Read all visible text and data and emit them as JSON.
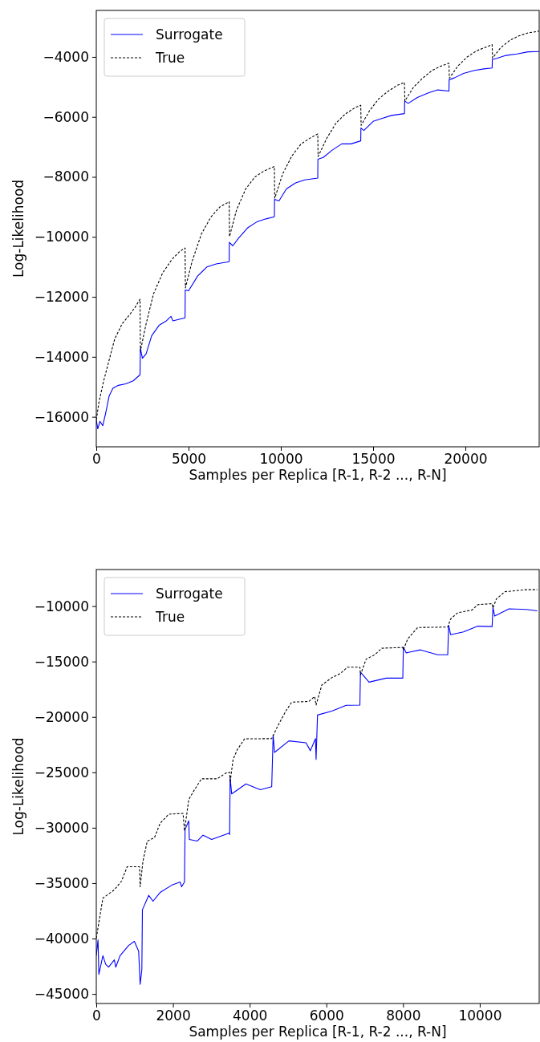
{
  "chart_data": [
    {
      "type": "line",
      "xlabel": "Samples per Replica [R-1, R-2 ..., R-N]",
      "ylabel": "Log-Likelihood",
      "xlim": [
        0,
        24000
      ],
      "ylim": [
        -17000,
        -2450
      ],
      "xticks": [
        0,
        5000,
        10000,
        15000,
        20000
      ],
      "yticks": [
        {
          "value": -16000,
          "label": "−16000"
        },
        {
          "value": -14000,
          "label": "−14000"
        },
        {
          "value": -12000,
          "label": "−12000"
        },
        {
          "value": -10000,
          "label": "−10000"
        },
        {
          "value": -8000,
          "label": "−8000"
        },
        {
          "value": -6000,
          "label": "−6000"
        },
        {
          "value": -4000,
          "label": "−4000"
        }
      ],
      "grid": false,
      "legend": "top left",
      "series": [
        {
          "name": "Surrogate",
          "color": "#0000ff",
          "line_style": "solid",
          "x": [
            0,
            80,
            200,
            350,
            500,
            700,
            900,
            1200,
            1600,
            2000,
            2370,
            2390,
            2500,
            2700,
            3000,
            3400,
            3800,
            4050,
            4150,
            4810,
            4820,
            5000,
            5500,
            6000,
            6500,
            7200,
            7210,
            7400,
            7700,
            8200,
            8700,
            9200,
            9650,
            9660,
            9900,
            10300,
            10800,
            11300,
            12000,
            12010,
            12300,
            12800,
            13300,
            13800,
            14330,
            14340,
            14500,
            15000,
            15500,
            16000,
            16700,
            16710,
            16900,
            17400,
            18000,
            18500,
            19110,
            19120,
            19400,
            19900,
            20500,
            21000,
            21450,
            21460,
            21700,
            22200,
            22800,
            23400,
            24000
          ],
          "values": [
            -16100,
            -16400,
            -16150,
            -16300,
            -15900,
            -15300,
            -15050,
            -14950,
            -14900,
            -14800,
            -14600,
            -13720,
            -14050,
            -13900,
            -13300,
            -12950,
            -12800,
            -12650,
            -12800,
            -12700,
            -11770,
            -11800,
            -11300,
            -11000,
            -10900,
            -10830,
            -10180,
            -10300,
            -10050,
            -9700,
            -9500,
            -9400,
            -9330,
            -8750,
            -8800,
            -8400,
            -8200,
            -8100,
            -8040,
            -7410,
            -7350,
            -7100,
            -6900,
            -6900,
            -6800,
            -6370,
            -6450,
            -6150,
            -6050,
            -5950,
            -5890,
            -5470,
            -5550,
            -5350,
            -5200,
            -5100,
            -5140,
            -4760,
            -4700,
            -4550,
            -4450,
            -4400,
            -4370,
            -4090,
            -4050,
            -3950,
            -3900,
            -3830,
            -3820
          ]
        },
        {
          "name": "True",
          "color": "#000000",
          "line_style": "dashed",
          "x": [
            0,
            150,
            400,
            700,
            1000,
            1400,
            1800,
            2100,
            2370,
            2390,
            2700,
            3100,
            3600,
            4100,
            4500,
            4810,
            4830,
            5200,
            5700,
            6200,
            6700,
            7200,
            7220,
            7600,
            8100,
            8600,
            9100,
            9650,
            9670,
            10100,
            10600,
            11100,
            11600,
            12000,
            12020,
            12500,
            13000,
            13500,
            14000,
            14330,
            14350,
            14800,
            15300,
            15800,
            16300,
            16700,
            16720,
            17200,
            17700,
            18200,
            18700,
            19110,
            19130,
            19600,
            20100,
            20600,
            21000,
            21450,
            21470,
            21900,
            22400,
            22900,
            23400,
            24000
          ],
          "values": [
            -16100,
            -15500,
            -14800,
            -14100,
            -13400,
            -12900,
            -12600,
            -12350,
            -12080,
            -13810,
            -12900,
            -11900,
            -11200,
            -10750,
            -10500,
            -10370,
            -11700,
            -10800,
            -9900,
            -9350,
            -9000,
            -8830,
            -9990,
            -9100,
            -8400,
            -8000,
            -7800,
            -7650,
            -8710,
            -7900,
            -7300,
            -6900,
            -6700,
            -6570,
            -7320,
            -6700,
            -6200,
            -5900,
            -5700,
            -5610,
            -6280,
            -5800,
            -5400,
            -5150,
            -4950,
            -4850,
            -5470,
            -5000,
            -4700,
            -4450,
            -4300,
            -4210,
            -4710,
            -4300,
            -4000,
            -3800,
            -3700,
            -3590,
            -4040,
            -3700,
            -3450,
            -3300,
            -3200,
            -3140
          ]
        }
      ]
    },
    {
      "type": "line",
      "xlabel": "Samples per Replica [R-1, R-2 ..., R-N]",
      "ylabel": "Log-Likelihood",
      "xlim": [
        0,
        11550
      ],
      "ylim": [
        -45860,
        -6700
      ],
      "xticks": [
        0,
        2000,
        4000,
        6000,
        8000,
        10000
      ],
      "yticks": [
        {
          "value": -45000,
          "label": "−45000"
        },
        {
          "value": -40000,
          "label": "−40000"
        },
        {
          "value": -35000,
          "label": "−35000"
        },
        {
          "value": -30000,
          "label": "−30000"
        },
        {
          "value": -25000,
          "label": "−25000"
        },
        {
          "value": -20000,
          "label": "−20000"
        },
        {
          "value": -15000,
          "label": "−15000"
        },
        {
          "value": -10000,
          "label": "−10000"
        }
      ],
      "grid": false,
      "legend": "top left",
      "series": [
        {
          "name": "Surrogate",
          "color": "#0000ff",
          "line_style": "solid",
          "x": [
            0,
            45,
            67,
            172,
            246,
            321,
            471,
            508,
            620,
            844,
            993,
            1105,
            1143,
            1188,
            1203,
            1367,
            1479,
            1665,
            1964,
            2188,
            2225,
            2300,
            2315,
            2411,
            2426,
            2635,
            2784,
            3008,
            3456,
            3478,
            3490,
            3530,
            3903,
            4276,
            4575,
            4612,
            4649,
            5022,
            5470,
            5582,
            5716,
            5732,
            5769,
            6142,
            6515,
            6874,
            6889,
            7113,
            7560,
            7933,
            7993,
            8008,
            8082,
            8455,
            8903,
            9165,
            9188,
            9240,
            9576,
            9949,
            10322,
            10344,
            10389,
            10762,
            11218,
            11501
          ],
          "values": [
            -41540,
            -40120,
            -43230,
            -41540,
            -42320,
            -42580,
            -41930,
            -42580,
            -41540,
            -40620,
            -40250,
            -41130,
            -44130,
            -42840,
            -37400,
            -36100,
            -36630,
            -35840,
            -35190,
            -34900,
            -35330,
            -34900,
            -30160,
            -29380,
            -31060,
            -31200,
            -30670,
            -31060,
            -30490,
            -30600,
            -25400,
            -26950,
            -26050,
            -26570,
            -26300,
            -21640,
            -23200,
            -22160,
            -22340,
            -23050,
            -21960,
            -23840,
            -19830,
            -19470,
            -18950,
            -18930,
            -15950,
            -16860,
            -16500,
            -16500,
            -16500,
            -13700,
            -14220,
            -13950,
            -14390,
            -14390,
            -11730,
            -12580,
            -12330,
            -11810,
            -11850,
            -10120,
            -10900,
            -10250,
            -10300,
            -10430
          ]
        },
        {
          "name": "True",
          "color": "#000000",
          "line_style": "dashed",
          "x": [
            0,
            172,
            471,
            657,
            806,
            1128,
            1143,
            1218,
            1330,
            1516,
            1665,
            1889,
            2262,
            2300,
            2411,
            2560,
            2746,
            3157,
            3381,
            3478,
            3490,
            3567,
            3679,
            3866,
            4575,
            4724,
            4948,
            5097,
            5545,
            5694,
            5732,
            5881,
            6142,
            6366,
            6553,
            6874,
            6889,
            7038,
            7262,
            7448,
            7993,
            8008,
            8120,
            8381,
            9165,
            9240,
            9426,
            9799,
            9949,
            10322,
            10344,
            10434,
            10658,
            11218,
            11501
          ],
          "values": [
            -39970,
            -36350,
            -35600,
            -34820,
            -33520,
            -33520,
            -35330,
            -33000,
            -31200,
            -30900,
            -29600,
            -28780,
            -28700,
            -30290,
            -27460,
            -26570,
            -25580,
            -25580,
            -25060,
            -25000,
            -25910,
            -23840,
            -22940,
            -21980,
            -21960,
            -20870,
            -19440,
            -18670,
            -18600,
            -18150,
            -18930,
            -17120,
            -16460,
            -16080,
            -15510,
            -15510,
            -16200,
            -14780,
            -14390,
            -13800,
            -13730,
            -13950,
            -12970,
            -11930,
            -11890,
            -11160,
            -10600,
            -10350,
            -9870,
            -9780,
            -10170,
            -9350,
            -8700,
            -8520,
            -8520
          ]
        }
      ]
    }
  ]
}
